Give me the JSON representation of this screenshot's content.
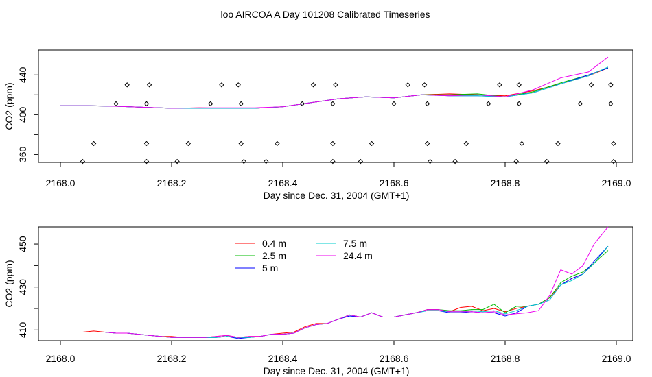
{
  "figure": {
    "title": "loo AIRCOA A  Day 101208  Calibrated Timeseries"
  },
  "colors": {
    "0.4 m": "#ff0000",
    "2.5 m": "#00bb00",
    "5 m": "#0000ff",
    "7.5 m": "#00cccc",
    "24.4 m": "#ee00ee",
    "axis": "#000000"
  },
  "chart_data": [
    {
      "type": "line",
      "xlabel": "Day since Dec. 31, 2004 (GMT+1)",
      "ylabel": "CO2 (ppm)",
      "xlim": [
        2168.0,
        2169.0
      ],
      "ylim": [
        352,
        465
      ],
      "xticks": [
        "2168.0",
        "2168.2",
        "2168.4",
        "2168.6",
        "2168.8",
        "2169.0"
      ],
      "yticks": [
        "360",
        "400",
        "440"
      ],
      "x": [
        2168.0,
        2168.05,
        2168.1,
        2168.15,
        2168.2,
        2168.25,
        2168.3,
        2168.35,
        2168.4,
        2168.45,
        2168.5,
        2168.55,
        2168.6,
        2168.65,
        2168.7,
        2168.75,
        2168.8,
        2168.85,
        2168.9,
        2168.95,
        2168.985
      ],
      "series": [
        {
          "name": "0.4 m",
          "values": [
            409,
            409,
            408.5,
            407.5,
            406.5,
            407,
            406.5,
            406.5,
            408,
            412,
            416,
            418,
            417,
            420,
            421,
            420,
            419,
            424,
            431,
            439,
            447
          ]
        },
        {
          "name": "2.5 m",
          "values": [
            409,
            409,
            408.5,
            407.5,
            406.5,
            406.5,
            406.5,
            406.5,
            408,
            412,
            416,
            418,
            417,
            420,
            420,
            421,
            418,
            423,
            432,
            440,
            447
          ]
        },
        {
          "name": "5 m",
          "values": [
            409,
            409,
            408.5,
            407.5,
            406.5,
            406.5,
            406.5,
            406.5,
            408,
            412,
            416,
            418,
            417,
            420,
            419,
            419,
            418,
            422,
            431,
            440,
            447
          ]
        },
        {
          "name": "7.5 m",
          "values": [
            409,
            409,
            408.5,
            407.5,
            406.5,
            406.5,
            406.5,
            406.5,
            408,
            412,
            416,
            418,
            417,
            420,
            419,
            419,
            418,
            422,
            431,
            439,
            448
          ]
        },
        {
          "name": "24.4 m",
          "values": [
            409,
            409,
            408.5,
            407.5,
            406.5,
            407,
            407,
            407,
            408,
            412,
            416,
            418,
            417,
            420,
            419,
            420,
            418,
            425,
            437,
            443,
            458
          ]
        }
      ],
      "markers": {
        "symbol": "diamond",
        "points": [
          [
            2168.04,
            353
          ],
          [
            2168.06,
            371
          ],
          [
            2168.1,
            411
          ],
          [
            2168.12,
            430
          ],
          [
            2168.155,
            353
          ],
          [
            2168.155,
            371
          ],
          [
            2168.155,
            411
          ],
          [
            2168.16,
            430
          ],
          [
            2168.21,
            353
          ],
          [
            2168.23,
            371
          ],
          [
            2168.27,
            411
          ],
          [
            2168.29,
            430
          ],
          [
            2168.32,
            430
          ],
          [
            2168.325,
            411
          ],
          [
            2168.325,
            371
          ],
          [
            2168.33,
            353
          ],
          [
            2168.37,
            353
          ],
          [
            2168.39,
            371
          ],
          [
            2168.435,
            411
          ],
          [
            2168.455,
            430
          ],
          [
            2168.49,
            371
          ],
          [
            2168.49,
            411
          ],
          [
            2168.49,
            353
          ],
          [
            2168.495,
            430
          ],
          [
            2168.54,
            353
          ],
          [
            2168.56,
            371
          ],
          [
            2168.6,
            411
          ],
          [
            2168.625,
            430
          ],
          [
            2168.655,
            430
          ],
          [
            2168.66,
            411
          ],
          [
            2168.66,
            371
          ],
          [
            2168.665,
            353
          ],
          [
            2168.71,
            353
          ],
          [
            2168.73,
            371
          ],
          [
            2168.77,
            411
          ],
          [
            2168.79,
            430
          ],
          [
            2168.82,
            353
          ],
          [
            2168.825,
            411
          ],
          [
            2168.825,
            430
          ],
          [
            2168.83,
            371
          ],
          [
            2168.875,
            353
          ],
          [
            2168.895,
            371
          ],
          [
            2168.935,
            411
          ],
          [
            2168.955,
            430
          ],
          [
            2168.99,
            430
          ],
          [
            2168.99,
            411
          ],
          [
            2168.995,
            371
          ],
          [
            2168.995,
            353
          ]
        ]
      }
    },
    {
      "type": "line",
      "xlabel": "Day since Dec. 31, 2004 (GMT+1)",
      "ylabel": "CO2 (ppm)",
      "xlim": [
        2168.0,
        2169.0
      ],
      "ylim": [
        405,
        458
      ],
      "xticks": [
        "2168.0",
        "2168.2",
        "2168.4",
        "2168.6",
        "2168.8",
        "2169.0"
      ],
      "yticks": [
        "410",
        "430",
        "450"
      ],
      "legend_position": "top-center",
      "x": [
        2168.0,
        2168.02,
        2168.04,
        2168.06,
        2168.08,
        2168.1,
        2168.12,
        2168.14,
        2168.16,
        2168.18,
        2168.2,
        2168.22,
        2168.24,
        2168.26,
        2168.28,
        2168.3,
        2168.32,
        2168.34,
        2168.36,
        2168.38,
        2168.4,
        2168.42,
        2168.44,
        2168.46,
        2168.48,
        2168.5,
        2168.52,
        2168.54,
        2168.56,
        2168.58,
        2168.6,
        2168.62,
        2168.64,
        2168.66,
        2168.68,
        2168.7,
        2168.72,
        2168.74,
        2168.76,
        2168.78,
        2168.8,
        2168.82,
        2168.84,
        2168.86,
        2168.88,
        2168.9,
        2168.92,
        2168.94,
        2168.96,
        2168.985
      ],
      "series": [
        {
          "name": "0.4 m",
          "values": [
            409,
            409,
            409,
            409.5,
            409,
            408.5,
            408.5,
            408,
            407.5,
            407,
            407,
            406.5,
            406.5,
            406.5,
            407,
            407.5,
            406.5,
            407,
            407,
            408,
            408.5,
            409,
            411.5,
            413,
            413,
            415,
            417,
            416,
            418,
            416,
            416,
            417,
            418,
            419.5,
            419.5,
            418.5,
            420.5,
            421,
            419,
            420,
            418.5,
            420,
            421,
            422,
            425,
            431,
            434,
            436,
            441,
            449
          ]
        },
        {
          "name": "2.5 m",
          "values": [
            409,
            409,
            409,
            409,
            409,
            408.5,
            408.5,
            408,
            407.5,
            407,
            406.5,
            406.5,
            406.5,
            406.5,
            406.5,
            407,
            406.5,
            406.5,
            407,
            408,
            408,
            408.5,
            411,
            412.5,
            413,
            415,
            417,
            416,
            418,
            416,
            416,
            417,
            418,
            419.5,
            419.5,
            419,
            419,
            419.5,
            419.5,
            422,
            418,
            421,
            421,
            422,
            425,
            432,
            435,
            437,
            441,
            447
          ]
        },
        {
          "name": "5 m",
          "values": [
            409,
            409,
            409,
            409,
            409,
            408.5,
            408.5,
            408,
            407.5,
            407,
            406.5,
            406.5,
            406.5,
            406.5,
            406.5,
            407,
            406,
            406.5,
            407,
            408,
            408,
            408.5,
            411,
            412.5,
            413,
            415,
            416.5,
            416,
            418,
            416,
            416,
            417,
            418,
            419,
            419,
            418,
            418,
            418.5,
            418,
            418,
            416.5,
            418,
            421,
            422,
            424,
            431,
            434,
            436,
            442,
            449
          ]
        },
        {
          "name": "7.5 m",
          "values": [
            409,
            409,
            409,
            409,
            409,
            408.5,
            408.5,
            408,
            407.5,
            407,
            406.5,
            406.5,
            406.5,
            406.5,
            406.5,
            407,
            406.5,
            406.5,
            407,
            408,
            408,
            408.5,
            411,
            412.5,
            413,
            415,
            417,
            416,
            418,
            416,
            416,
            417,
            418,
            419,
            419,
            418.5,
            418.5,
            419,
            418.5,
            419,
            417.5,
            419,
            421,
            422,
            424,
            431,
            433,
            436,
            441,
            449
          ]
        },
        {
          "name": "24.4 m",
          "values": [
            409,
            409,
            409,
            409,
            409,
            408.5,
            408.5,
            408,
            407.5,
            407,
            406.5,
            406.5,
            406.5,
            406.5,
            407,
            407.5,
            406.5,
            407,
            407,
            408,
            408,
            408.5,
            411,
            412.5,
            413,
            415,
            417,
            416,
            418,
            416,
            416,
            417,
            418,
            419.5,
            419.5,
            418.5,
            418.5,
            418.5,
            418,
            418.5,
            417,
            417.5,
            418,
            419,
            426,
            438,
            436,
            440,
            450,
            458
          ]
        }
      ]
    }
  ]
}
